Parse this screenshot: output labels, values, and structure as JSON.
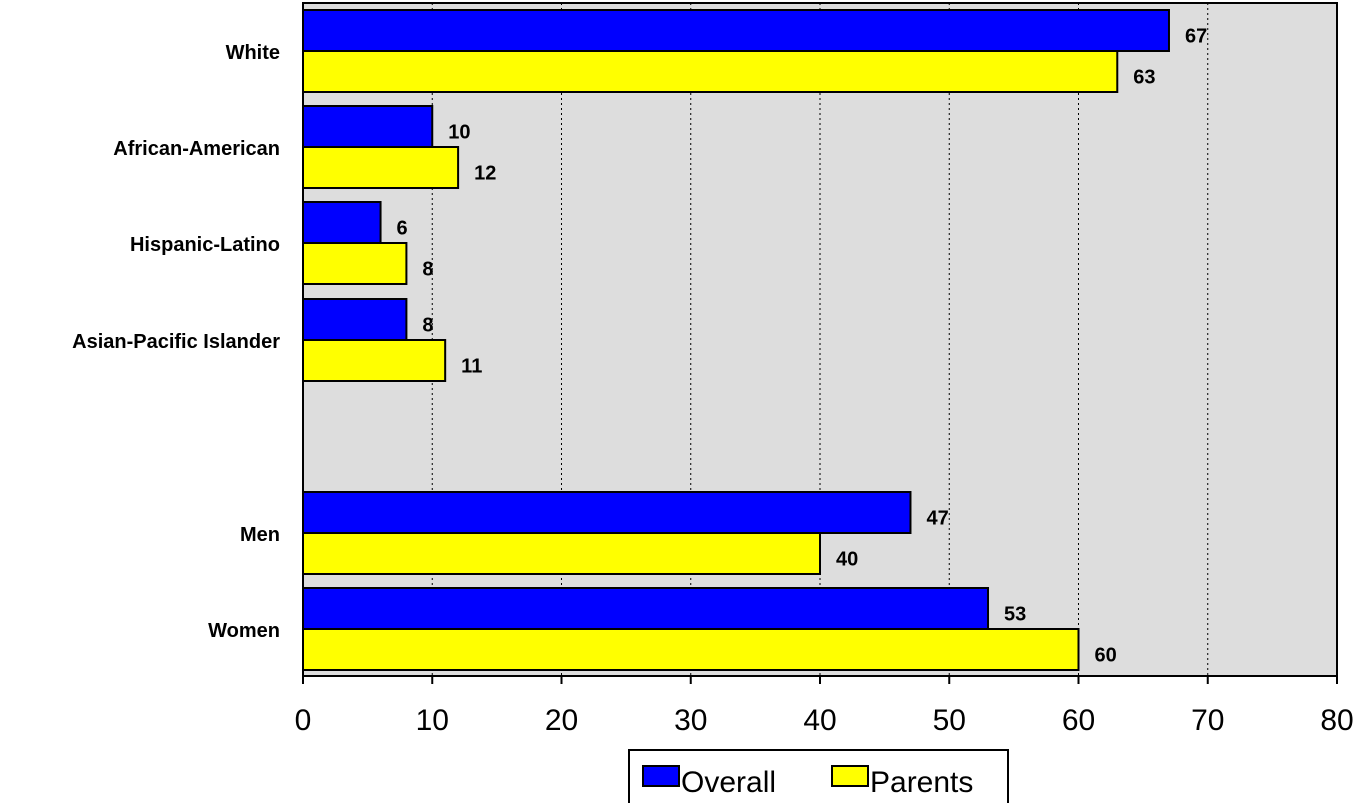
{
  "chart_data": {
    "type": "bar",
    "orientation": "horizontal",
    "categories": [
      "White",
      "African-American",
      "Hispanic-Latino",
      "Asian-Pacific Islander",
      "Men",
      "Women"
    ],
    "series": [
      {
        "name": "Overall",
        "color": "#0000ff",
        "values": [
          67,
          10,
          6,
          8,
          47,
          53
        ]
      },
      {
        "name": "Parents",
        "color": "#ffff00",
        "values": [
          63,
          12,
          8,
          11,
          40,
          60
        ]
      }
    ],
    "title": "",
    "xlabel": "",
    "ylabel": "",
    "xlim": [
      0,
      80
    ],
    "x_ticks": [
      0,
      10,
      20,
      30,
      40,
      50,
      60,
      70,
      80
    ],
    "grid": "vertical dotted",
    "legend": "bottom-center",
    "plot_background": "#dddddd"
  }
}
